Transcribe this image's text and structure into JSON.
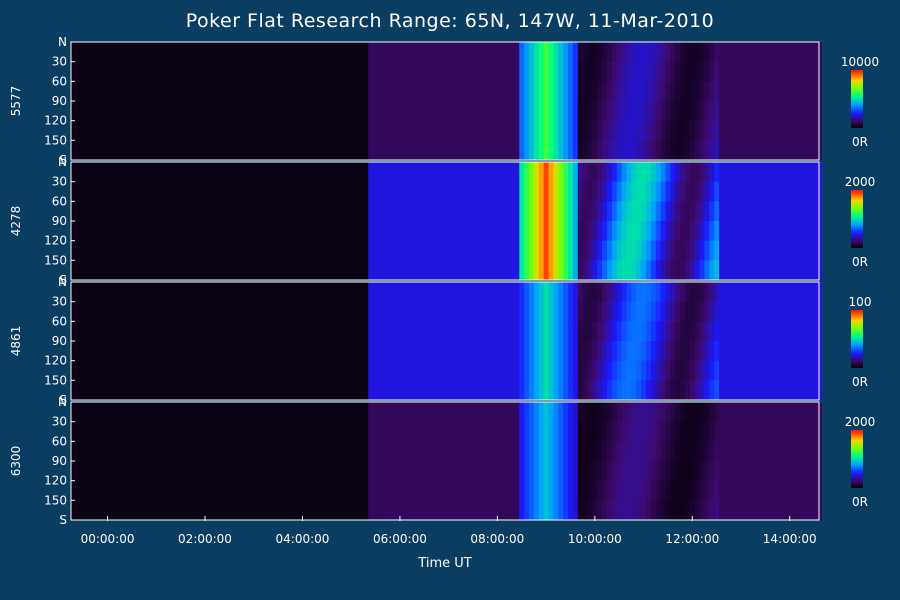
{
  "chart_data": {
    "type": "heatmap",
    "title": "Poker Flat Research Range: 65N, 147W, 11-Mar-2010",
    "xlabel": "Time UT",
    "x_ticks": [
      "00:00:00",
      "02:00:00",
      "04:00:00",
      "06:00:00",
      "08:00:00",
      "10:00:00",
      "12:00:00",
      "14:00:00"
    ],
    "x_tick_hours": [
      0,
      2,
      4,
      6,
      8,
      10,
      12,
      14
    ],
    "xlim_hours": [
      -0.75,
      14.6
    ],
    "y_tick_labels": [
      "N",
      "30",
      "60",
      "90",
      "120",
      "150",
      "S"
    ],
    "y_tick_values": [
      0,
      30,
      60,
      90,
      120,
      150,
      180
    ],
    "ylim_scan_angle": [
      0,
      180
    ],
    "panels": [
      {
        "wavelength": "5577",
        "scale_max": "10000",
        "scale_min": "0R",
        "intensity_fraction": {
          "background": 0.02,
          "pre_onset": 0.02,
          "post_onset": 0.1,
          "substorm_peak": 0.62,
          "post_midnight": 0.2
        }
      },
      {
        "wavelength": "4278",
        "scale_max": "2000",
        "scale_min": "0R",
        "intensity_fraction": {
          "background": 0.02,
          "pre_onset": 0.02,
          "post_onset": 0.22,
          "substorm_peak": 0.95,
          "post_midnight": 0.5
        }
      },
      {
        "wavelength": "4861",
        "scale_max": "100",
        "scale_min": "0R",
        "intensity_fraction": {
          "background": 0.02,
          "pre_onset": 0.02,
          "post_onset": 0.22,
          "substorm_peak": 0.5,
          "post_midnight": 0.35
        }
      },
      {
        "wavelength": "6300",
        "scale_max": "2000",
        "scale_min": "0R",
        "intensity_fraction": {
          "background": 0.02,
          "pre_onset": 0.02,
          "post_onset": 0.1,
          "substorm_peak": 0.45,
          "post_midnight": 0.15
        }
      }
    ],
    "data_onset_hour": 5.3,
    "substorm_start_hour": 8.4,
    "substorm_peak_hour": 9.0,
    "substorm_end_hour": 9.6,
    "grid": false
  }
}
